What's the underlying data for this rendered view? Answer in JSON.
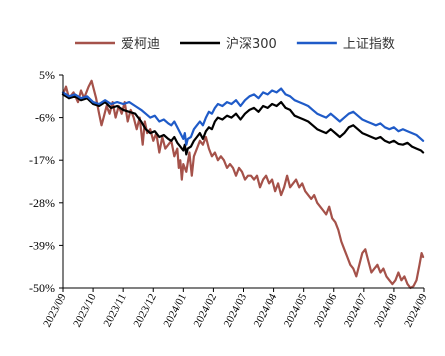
{
  "chart_data": {
    "type": "line",
    "title": "",
    "xlabel": "",
    "ylabel": "",
    "y_unit": "%",
    "ylim": [
      -50,
      5
    ],
    "y_ticks": [
      5,
      -6,
      -17,
      -28,
      -39,
      -50
    ],
    "y_tick_labels": [
      "5%",
      "-6%",
      "-17%",
      "-28%",
      "-39%",
      "-50%"
    ],
    "x_tick_labels": [
      "2023/09",
      "2023/10",
      "2023/11",
      "2023/12",
      "2024/01",
      "2024/02",
      "2024/03",
      "2024/04",
      "2024/05",
      "2024/06",
      "2024/07",
      "2024/08",
      "2024/09"
    ],
    "grid": false,
    "legend_position": "top",
    "series": [
      {
        "name": "爱柯迪",
        "color": "#A5524A",
        "points": [
          [
            0.0,
            0
          ],
          [
            0.1,
            2
          ],
          [
            0.2,
            -1
          ],
          [
            0.35,
            0.5
          ],
          [
            0.5,
            -2
          ],
          [
            0.6,
            1
          ],
          [
            0.7,
            -1
          ],
          [
            0.85,
            2
          ],
          [
            0.95,
            3.5
          ],
          [
            1.0,
            2
          ],
          [
            1.1,
            -1
          ],
          [
            1.2,
            -5
          ],
          [
            1.28,
            -8
          ],
          [
            1.35,
            -6
          ],
          [
            1.45,
            -3
          ],
          [
            1.55,
            -5
          ],
          [
            1.65,
            -2
          ],
          [
            1.75,
            -6
          ],
          [
            1.85,
            -3
          ],
          [
            1.95,
            -5
          ],
          [
            2.05,
            -2
          ],
          [
            2.15,
            -7
          ],
          [
            2.25,
            -4
          ],
          [
            2.35,
            -6
          ],
          [
            2.45,
            -9
          ],
          [
            2.55,
            -6
          ],
          [
            2.65,
            -13
          ],
          [
            2.72,
            -7
          ],
          [
            2.8,
            -10
          ],
          [
            2.9,
            -9
          ],
          [
            3.0,
            -12
          ],
          [
            3.1,
            -10
          ],
          [
            3.2,
            -15
          ],
          [
            3.3,
            -11
          ],
          [
            3.4,
            -14
          ],
          [
            3.5,
            -13
          ],
          [
            3.6,
            -12
          ],
          [
            3.7,
            -16
          ],
          [
            3.8,
            -14
          ],
          [
            3.85,
            -19
          ],
          [
            3.9,
            -17
          ],
          [
            3.95,
            -22
          ],
          [
            4.0,
            -18
          ],
          [
            4.1,
            -20
          ],
          [
            4.2,
            -15
          ],
          [
            4.28,
            -21
          ],
          [
            4.35,
            -16
          ],
          [
            4.45,
            -14
          ],
          [
            4.55,
            -12
          ],
          [
            4.65,
            -13
          ],
          [
            4.75,
            -11
          ],
          [
            4.85,
            -14
          ],
          [
            4.95,
            -16
          ],
          [
            5.05,
            -15
          ],
          [
            5.15,
            -17
          ],
          [
            5.25,
            -16
          ],
          [
            5.35,
            -17
          ],
          [
            5.45,
            -19
          ],
          [
            5.55,
            -18
          ],
          [
            5.65,
            -19
          ],
          [
            5.75,
            -21
          ],
          [
            5.85,
            -19
          ],
          [
            5.95,
            -20
          ],
          [
            6.05,
            -22
          ],
          [
            6.15,
            -21
          ],
          [
            6.25,
            -21
          ],
          [
            6.35,
            -22
          ],
          [
            6.45,
            -21
          ],
          [
            6.55,
            -24
          ],
          [
            6.65,
            -22
          ],
          [
            6.75,
            -21
          ],
          [
            6.85,
            -23
          ],
          [
            6.95,
            -22
          ],
          [
            7.05,
            -25
          ],
          [
            7.15,
            -23
          ],
          [
            7.25,
            -26
          ],
          [
            7.35,
            -24
          ],
          [
            7.45,
            -21
          ],
          [
            7.55,
            -24
          ],
          [
            7.65,
            -23
          ],
          [
            7.75,
            -22
          ],
          [
            7.85,
            -24
          ],
          [
            7.95,
            -23
          ],
          [
            8.05,
            -25
          ],
          [
            8.15,
            -26
          ],
          [
            8.25,
            -27
          ],
          [
            8.35,
            -26
          ],
          [
            8.45,
            -28
          ],
          [
            8.55,
            -29
          ],
          [
            8.65,
            -30
          ],
          [
            8.75,
            -31
          ],
          [
            8.85,
            -29
          ],
          [
            8.95,
            -32
          ],
          [
            9.05,
            -33
          ],
          [
            9.15,
            -35
          ],
          [
            9.25,
            -38
          ],
          [
            9.35,
            -40
          ],
          [
            9.45,
            -42
          ],
          [
            9.55,
            -44
          ],
          [
            9.65,
            -45
          ],
          [
            9.75,
            -47
          ],
          [
            9.85,
            -44
          ],
          [
            9.95,
            -41
          ],
          [
            10.05,
            -40
          ],
          [
            10.15,
            -43
          ],
          [
            10.25,
            -46
          ],
          [
            10.35,
            -45
          ],
          [
            10.45,
            -44
          ],
          [
            10.55,
            -46
          ],
          [
            10.65,
            -45
          ],
          [
            10.75,
            -47
          ],
          [
            10.85,
            -48
          ],
          [
            10.95,
            -49
          ],
          [
            11.05,
            -48
          ],
          [
            11.15,
            -46
          ],
          [
            11.25,
            -48
          ],
          [
            11.35,
            -47
          ],
          [
            11.45,
            -49
          ],
          [
            11.55,
            -50
          ],
          [
            11.65,
            -49.5
          ],
          [
            11.75,
            -48
          ],
          [
            11.85,
            -44
          ],
          [
            11.92,
            -41
          ],
          [
            11.97,
            -42
          ]
        ]
      },
      {
        "name": "沪深300",
        "color": "#000000",
        "points": [
          [
            0.0,
            0
          ],
          [
            0.2,
            -1
          ],
          [
            0.4,
            -0.5
          ],
          [
            0.6,
            -1.5
          ],
          [
            0.8,
            -1
          ],
          [
            1.0,
            -2.5
          ],
          [
            1.2,
            -3
          ],
          [
            1.4,
            -2
          ],
          [
            1.6,
            -3.5
          ],
          [
            1.8,
            -3
          ],
          [
            2.0,
            -4
          ],
          [
            2.2,
            -4.5
          ],
          [
            2.4,
            -5
          ],
          [
            2.6,
            -7
          ],
          [
            2.75,
            -9
          ],
          [
            2.9,
            -10
          ],
          [
            3.05,
            -9.5
          ],
          [
            3.2,
            -11
          ],
          [
            3.35,
            -10.5
          ],
          [
            3.5,
            -11.5
          ],
          [
            3.6,
            -12
          ],
          [
            3.7,
            -11
          ],
          [
            3.8,
            -12.5
          ],
          [
            3.9,
            -13.5
          ],
          [
            4.0,
            -14.5
          ],
          [
            4.05,
            -13
          ],
          [
            4.1,
            -15.5
          ],
          [
            4.15,
            -14
          ],
          [
            4.25,
            -13.5
          ],
          [
            4.35,
            -12
          ],
          [
            4.45,
            -11
          ],
          [
            4.55,
            -10
          ],
          [
            4.65,
            -11.5
          ],
          [
            4.75,
            -9.5
          ],
          [
            4.85,
            -8.5
          ],
          [
            4.95,
            -9
          ],
          [
            5.05,
            -7
          ],
          [
            5.15,
            -6
          ],
          [
            5.3,
            -6.5
          ],
          [
            5.45,
            -5.5
          ],
          [
            5.6,
            -6
          ],
          [
            5.75,
            -5
          ],
          [
            5.9,
            -6.5
          ],
          [
            6.05,
            -5
          ],
          [
            6.2,
            -4
          ],
          [
            6.35,
            -3.5
          ],
          [
            6.5,
            -4.5
          ],
          [
            6.65,
            -3
          ],
          [
            6.8,
            -3.5
          ],
          [
            6.95,
            -2.5
          ],
          [
            7.1,
            -3
          ],
          [
            7.25,
            -2
          ],
          [
            7.4,
            -3.5
          ],
          [
            7.55,
            -4
          ],
          [
            7.7,
            -5.5
          ],
          [
            7.85,
            -6
          ],
          [
            8.0,
            -6.5
          ],
          [
            8.15,
            -7
          ],
          [
            8.3,
            -8
          ],
          [
            8.45,
            -9
          ],
          [
            8.6,
            -9.5
          ],
          [
            8.75,
            -10
          ],
          [
            8.9,
            -9
          ],
          [
            9.05,
            -10
          ],
          [
            9.2,
            -11
          ],
          [
            9.35,
            -10
          ],
          [
            9.5,
            -8.5
          ],
          [
            9.65,
            -8
          ],
          [
            9.8,
            -9
          ],
          [
            9.95,
            -10
          ],
          [
            10.1,
            -10.5
          ],
          [
            10.25,
            -11
          ],
          [
            10.4,
            -11.5
          ],
          [
            10.55,
            -11
          ],
          [
            10.7,
            -12
          ],
          [
            10.85,
            -12.5
          ],
          [
            11.0,
            -12
          ],
          [
            11.15,
            -12.8
          ],
          [
            11.3,
            -13
          ],
          [
            11.45,
            -12.5
          ],
          [
            11.6,
            -13.5
          ],
          [
            11.75,
            -14
          ],
          [
            11.9,
            -14.5
          ],
          [
            11.97,
            -15
          ]
        ]
      },
      {
        "name": "上证指数",
        "color": "#1F5BC8",
        "points": [
          [
            0.0,
            0.5
          ],
          [
            0.2,
            -0.5
          ],
          [
            0.4,
            0
          ],
          [
            0.6,
            -1
          ],
          [
            0.8,
            -0.5
          ],
          [
            1.0,
            -2
          ],
          [
            1.2,
            -2.5
          ],
          [
            1.4,
            -1.5
          ],
          [
            1.6,
            -2.5
          ],
          [
            1.8,
            -2
          ],
          [
            2.0,
            -2.5
          ],
          [
            2.2,
            -2
          ],
          [
            2.4,
            -3
          ],
          [
            2.6,
            -4
          ],
          [
            2.75,
            -5
          ],
          [
            2.9,
            -6
          ],
          [
            3.05,
            -5.5
          ],
          [
            3.2,
            -7
          ],
          [
            3.35,
            -6.5
          ],
          [
            3.5,
            -7.5
          ],
          [
            3.6,
            -8
          ],
          [
            3.7,
            -7
          ],
          [
            3.8,
            -8.5
          ],
          [
            3.9,
            -10
          ],
          [
            4.0,
            -11.5
          ],
          [
            4.05,
            -10
          ],
          [
            4.1,
            -13
          ],
          [
            4.15,
            -11.5
          ],
          [
            4.25,
            -11
          ],
          [
            4.35,
            -9
          ],
          [
            4.45,
            -8
          ],
          [
            4.55,
            -7
          ],
          [
            4.65,
            -8
          ],
          [
            4.75,
            -6
          ],
          [
            4.85,
            -4.5
          ],
          [
            4.95,
            -5
          ],
          [
            5.05,
            -3.5
          ],
          [
            5.15,
            -2.5
          ],
          [
            5.3,
            -3
          ],
          [
            5.45,
            -2
          ],
          [
            5.6,
            -2.5
          ],
          [
            5.75,
            -1.5
          ],
          [
            5.9,
            -3
          ],
          [
            6.05,
            -1.5
          ],
          [
            6.2,
            -0.5
          ],
          [
            6.35,
            0
          ],
          [
            6.5,
            -1
          ],
          [
            6.65,
            0.5
          ],
          [
            6.8,
            0
          ],
          [
            6.95,
            1
          ],
          [
            7.1,
            0.5
          ],
          [
            7.25,
            1.5
          ],
          [
            7.4,
            0
          ],
          [
            7.55,
            -0.5
          ],
          [
            7.7,
            -1.5
          ],
          [
            7.85,
            -2
          ],
          [
            8.0,
            -2.5
          ],
          [
            8.15,
            -3
          ],
          [
            8.3,
            -4
          ],
          [
            8.45,
            -5
          ],
          [
            8.6,
            -5.5
          ],
          [
            8.75,
            -6
          ],
          [
            8.9,
            -5
          ],
          [
            9.05,
            -6
          ],
          [
            9.2,
            -7
          ],
          [
            9.35,
            -6
          ],
          [
            9.5,
            -5
          ],
          [
            9.65,
            -4.5
          ],
          [
            9.8,
            -5.5
          ],
          [
            9.95,
            -6.5
          ],
          [
            10.1,
            -7
          ],
          [
            10.25,
            -7.5
          ],
          [
            10.4,
            -8
          ],
          [
            10.55,
            -7.5
          ],
          [
            10.7,
            -8.5
          ],
          [
            10.85,
            -9
          ],
          [
            11.0,
            -8.5
          ],
          [
            11.15,
            -9.5
          ],
          [
            11.3,
            -9
          ],
          [
            11.45,
            -9.5
          ],
          [
            11.6,
            -10
          ],
          [
            11.75,
            -10.5
          ],
          [
            11.9,
            -11.5
          ],
          [
            11.97,
            -12
          ]
        ]
      }
    ]
  }
}
